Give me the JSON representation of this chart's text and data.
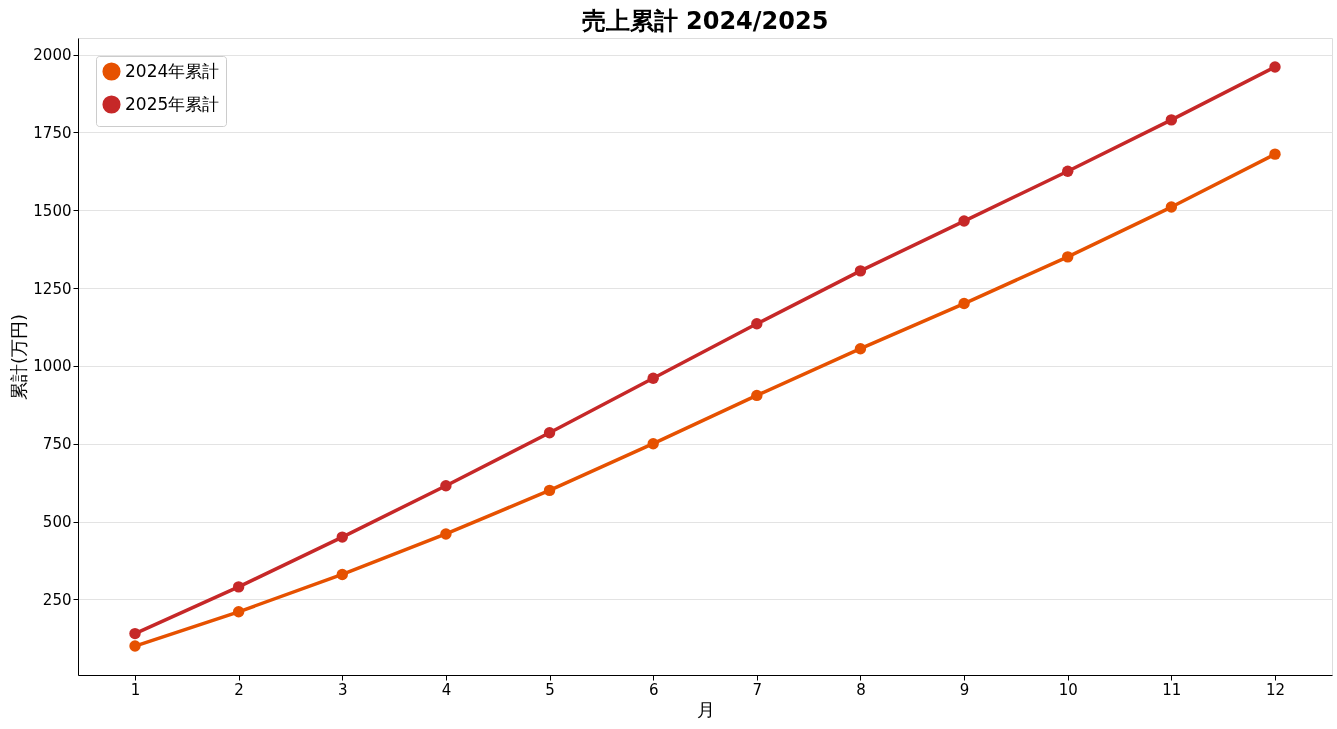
{
  "chart_data": {
    "type": "line",
    "title": "売上累計 2024/2025",
    "xlabel": "月",
    "ylabel": "累計(万円)",
    "x": [
      1,
      2,
      3,
      4,
      5,
      6,
      7,
      8,
      9,
      10,
      11,
      12
    ],
    "series": [
      {
        "name": "2024年累計",
        "color": "#e65100",
        "values": [
          100,
          210,
          330,
          460,
          600,
          750,
          905,
          1055,
          1200,
          1350,
          1510,
          1680
        ]
      },
      {
        "name": "2025年累計",
        "color": "#c62828",
        "values": [
          140,
          290,
          450,
          615,
          785,
          960,
          1135,
          1305,
          1465,
          1625,
          1790,
          1960
        ]
      }
    ],
    "xlim": [
      0.45,
      12.55
    ],
    "xticks": [
      1,
      2,
      3,
      4,
      5,
      6,
      7,
      8,
      9,
      10,
      11,
      12
    ],
    "ylim": [
      7,
      2053
    ],
    "yticks": [
      250,
      500,
      750,
      1000,
      1250,
      1500,
      1750,
      2000
    ],
    "grid": "y",
    "legend": "top left",
    "marker": "circle",
    "line_style": "solid"
  }
}
